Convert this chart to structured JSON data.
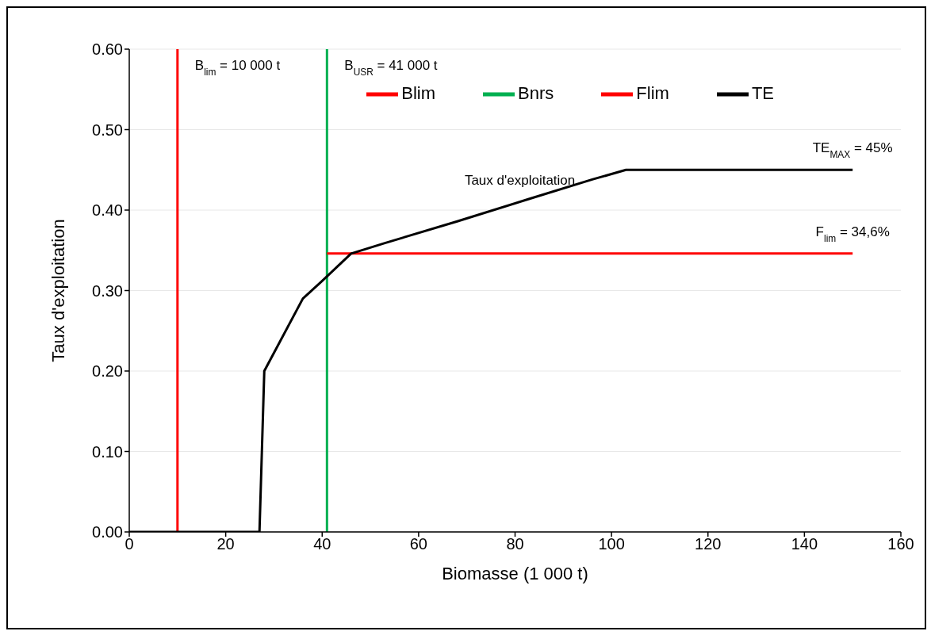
{
  "chart_data": {
    "type": "line",
    "xlabel": "Biomasse (1 000 t)",
    "ylabel": "Taux d'exploitation",
    "xlim": [
      0,
      160
    ],
    "xticks": [
      0,
      20,
      40,
      60,
      80,
      100,
      120,
      140,
      160
    ],
    "ylim": [
      0,
      0.6
    ],
    "yticks": [
      {
        "value": 0,
        "label": "0.00"
      },
      {
        "value": 0.1,
        "label": "0.10"
      },
      {
        "value": 0.2,
        "label": "0.20"
      },
      {
        "value": 0.3,
        "label": "0.30"
      },
      {
        "value": 0.4,
        "label": "0.40"
      },
      {
        "value": 0.5,
        "label": "0.50"
      },
      {
        "value": 0.6,
        "label": "0.60"
      }
    ],
    "grid": "y",
    "legend": "top right",
    "marker": "none",
    "line_style": "solid",
    "series": [
      {
        "name": "Blim",
        "color": "#ff0000",
        "x": [
          10,
          10
        ],
        "values": [
          0,
          0.6
        ]
      },
      {
        "name": "Bnrs",
        "color": "#00b050",
        "x": [
          41,
          41
        ],
        "values": [
          0,
          0.6
        ]
      },
      {
        "name": "Flim",
        "color": "#ff0000",
        "x": [
          41,
          150
        ],
        "values": [
          0.346,
          0.346
        ]
      },
      {
        "name": "TE",
        "color": "#000000",
        "x": [
          0,
          27,
          28,
          36,
          40,
          46,
          53,
          68,
          83,
          96,
          103,
          150
        ],
        "values": [
          0,
          0,
          0.2,
          0.29,
          0.312,
          0.346,
          0.359,
          0.386,
          0.414,
          0.438,
          0.45,
          0.45
        ]
      }
    ],
    "annotations": [
      {
        "text": "B$_{lim}$ = 10 000 t",
        "x": 10,
        "y": 0.6
      },
      {
        "text": "B$_{USR}$ = 41 000 t",
        "x": 41,
        "y": 0.6
      },
      {
        "text": "TE$_{MAX}$ = 45%",
        "x": 150,
        "y": 0.45
      },
      {
        "text": "F$_{lim}$ = 34,6%",
        "x": 150,
        "y": 0.346
      },
      {
        "text": "Taux d'exploitation",
        "x": 81,
        "y": 0.41
      }
    ]
  }
}
